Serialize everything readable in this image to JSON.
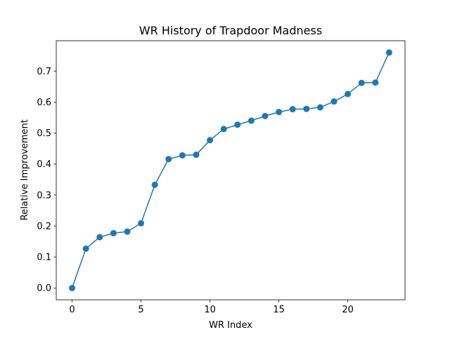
{
  "chart_data": {
    "type": "line",
    "title": "WR History of Trapdoor Madness",
    "xlabel": "WR Index",
    "ylabel": "Relative Improvement",
    "xlim": [
      -1.15,
      24.15
    ],
    "ylim": [
      -0.038,
      0.798
    ],
    "xticks": [
      0,
      5,
      10,
      15,
      20
    ],
    "xtick_labels": [
      "0",
      "5",
      "10",
      "15",
      "20"
    ],
    "yticks": [
      0.0,
      0.1,
      0.2,
      0.3,
      0.4,
      0.5,
      0.6,
      0.7
    ],
    "ytick_labels": [
      "0.0",
      "0.1",
      "0.2",
      "0.3",
      "0.4",
      "0.5",
      "0.6",
      "0.7"
    ],
    "grid": false,
    "legend": false,
    "series": [
      {
        "color": "#1f77b4",
        "marker": "circle",
        "x": [
          0,
          1,
          2,
          3,
          4,
          5,
          6,
          7,
          8,
          9,
          10,
          11,
          12,
          13,
          14,
          15,
          16,
          17,
          18,
          19,
          20,
          21,
          22,
          23
        ],
        "y": [
          0.0,
          0.127,
          0.164,
          0.177,
          0.182,
          0.209,
          0.333,
          0.416,
          0.428,
          0.43,
          0.477,
          0.513,
          0.527,
          0.54,
          0.555,
          0.568,
          0.577,
          0.578,
          0.583,
          0.602,
          0.626,
          0.662,
          0.663,
          0.76
        ]
      }
    ]
  }
}
